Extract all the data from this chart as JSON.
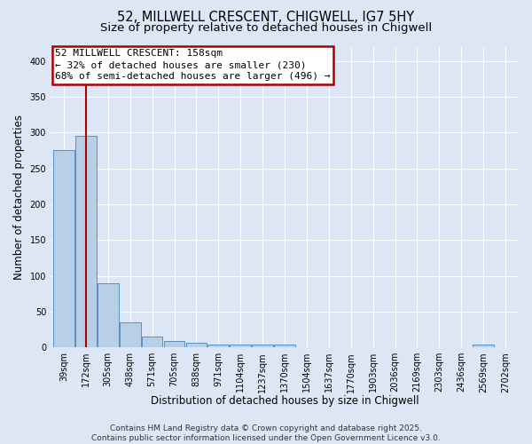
{
  "title1": "52, MILLWELL CRESCENT, CHIGWELL, IG7 5HY",
  "title2": "Size of property relative to detached houses in Chigwell",
  "xlabel": "Distribution of detached houses by size in Chigwell",
  "ylabel": "Number of detached properties",
  "bar_heights": [
    275,
    295,
    90,
    35,
    15,
    9,
    6,
    4,
    4,
    4,
    4,
    0,
    0,
    0,
    0,
    0,
    0,
    0,
    0,
    4,
    0
  ],
  "x_labels": [
    "39sqm",
    "172sqm",
    "305sqm",
    "438sqm",
    "571sqm",
    "705sqm",
    "838sqm",
    "971sqm",
    "1104sqm",
    "1237sqm",
    "1370sqm",
    "1504sqm",
    "1637sqm",
    "1770sqm",
    "1903sqm",
    "2036sqm",
    "2169sqm",
    "2303sqm",
    "2436sqm",
    "2569sqm",
    "2702sqm"
  ],
  "bar_color": "#b8cfe8",
  "bar_edge_color": "#5b8fba",
  "background_color": "#dce6f5",
  "grid_color": "#ffffff",
  "red_line_x": 1,
  "annotation_line1": "52 MILLWELL CRESCENT: 158sqm",
  "annotation_line2": "← 32% of detached houses are smaller (230)",
  "annotation_line3": "68% of semi-detached houses are larger (496) →",
  "annotation_box_color": "#aa0000",
  "ylim": [
    0,
    420
  ],
  "yticks": [
    0,
    50,
    100,
    150,
    200,
    250,
    300,
    350,
    400
  ],
  "footer_text": "Contains HM Land Registry data © Crown copyright and database right 2025.\nContains public sector information licensed under the Open Government Licence v3.0.",
  "title1_fontsize": 10.5,
  "title2_fontsize": 9.5,
  "ylabel_fontsize": 8.5,
  "xlabel_fontsize": 8.5,
  "tick_fontsize": 7,
  "annotation_fontsize": 8,
  "footer_fontsize": 6.5
}
